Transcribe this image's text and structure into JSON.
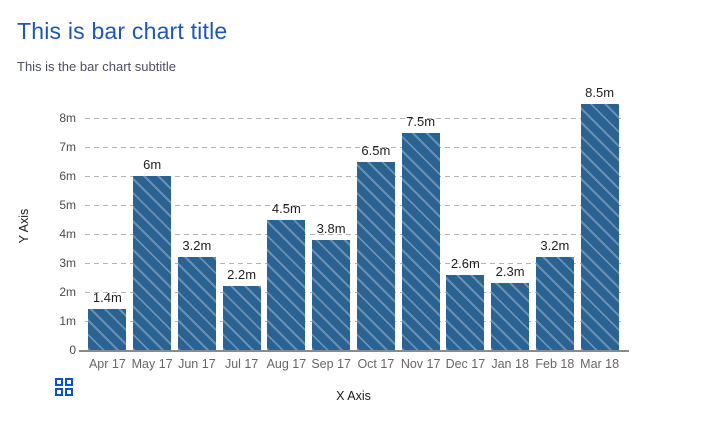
{
  "page": {
    "title": "This is bar chart title",
    "subtitle": "This is the bar chart subtitle"
  },
  "chart_data": {
    "type": "bar",
    "title": "This is bar chart title",
    "subtitle": "This is the bar chart subtitle",
    "xlabel": "X Axis",
    "ylabel": "Y Axis",
    "categories": [
      "Apr 17",
      "May 17",
      "Jun 17",
      "Jul 17",
      "Aug 17",
      "Sep 17",
      "Oct 17",
      "Nov 17",
      "Dec 17",
      "Jan 18",
      "Feb 18",
      "Mar 18"
    ],
    "values": [
      1.4,
      6,
      3.2,
      2.2,
      4.5,
      3.8,
      6.5,
      7.5,
      2.6,
      2.3,
      3.2,
      8.5
    ],
    "value_labels": [
      "1.4m",
      "6m",
      "3.2m",
      "2.2m",
      "4.5m",
      "3.8m",
      "6.5m",
      "7.5m",
      "2.6m",
      "2.3m",
      "3.2m",
      "8.5m"
    ],
    "y_ticks": [
      "0",
      "1m",
      "2m",
      "3m",
      "4m",
      "5m",
      "6m",
      "7m",
      "8m"
    ],
    "y_tick_values": [
      0,
      1,
      2,
      3,
      4,
      5,
      6,
      7,
      8
    ],
    "ylim": [
      0,
      8.5
    ],
    "grid": "dashed horizontal gridlines",
    "legend": "none",
    "bar_style": "solid fill with light diagonal hatch stripes"
  },
  "icons": {
    "grid_icon": "grid-of-four-squares"
  },
  "colors": {
    "title": "#1c57b8",
    "subtitle": "#4e4d66",
    "bar_fill": "#2a6292",
    "hatch_line": "#5d8fb9",
    "gridline": "#b4b4b4",
    "axis_line": "#8a8a8a",
    "y_tick_text": "#4a4a4a",
    "x_tick_text": "#666666",
    "value_label_text": "#1f1f1f",
    "icon_blue": "#0a52cc",
    "background": "#ffffff"
  }
}
